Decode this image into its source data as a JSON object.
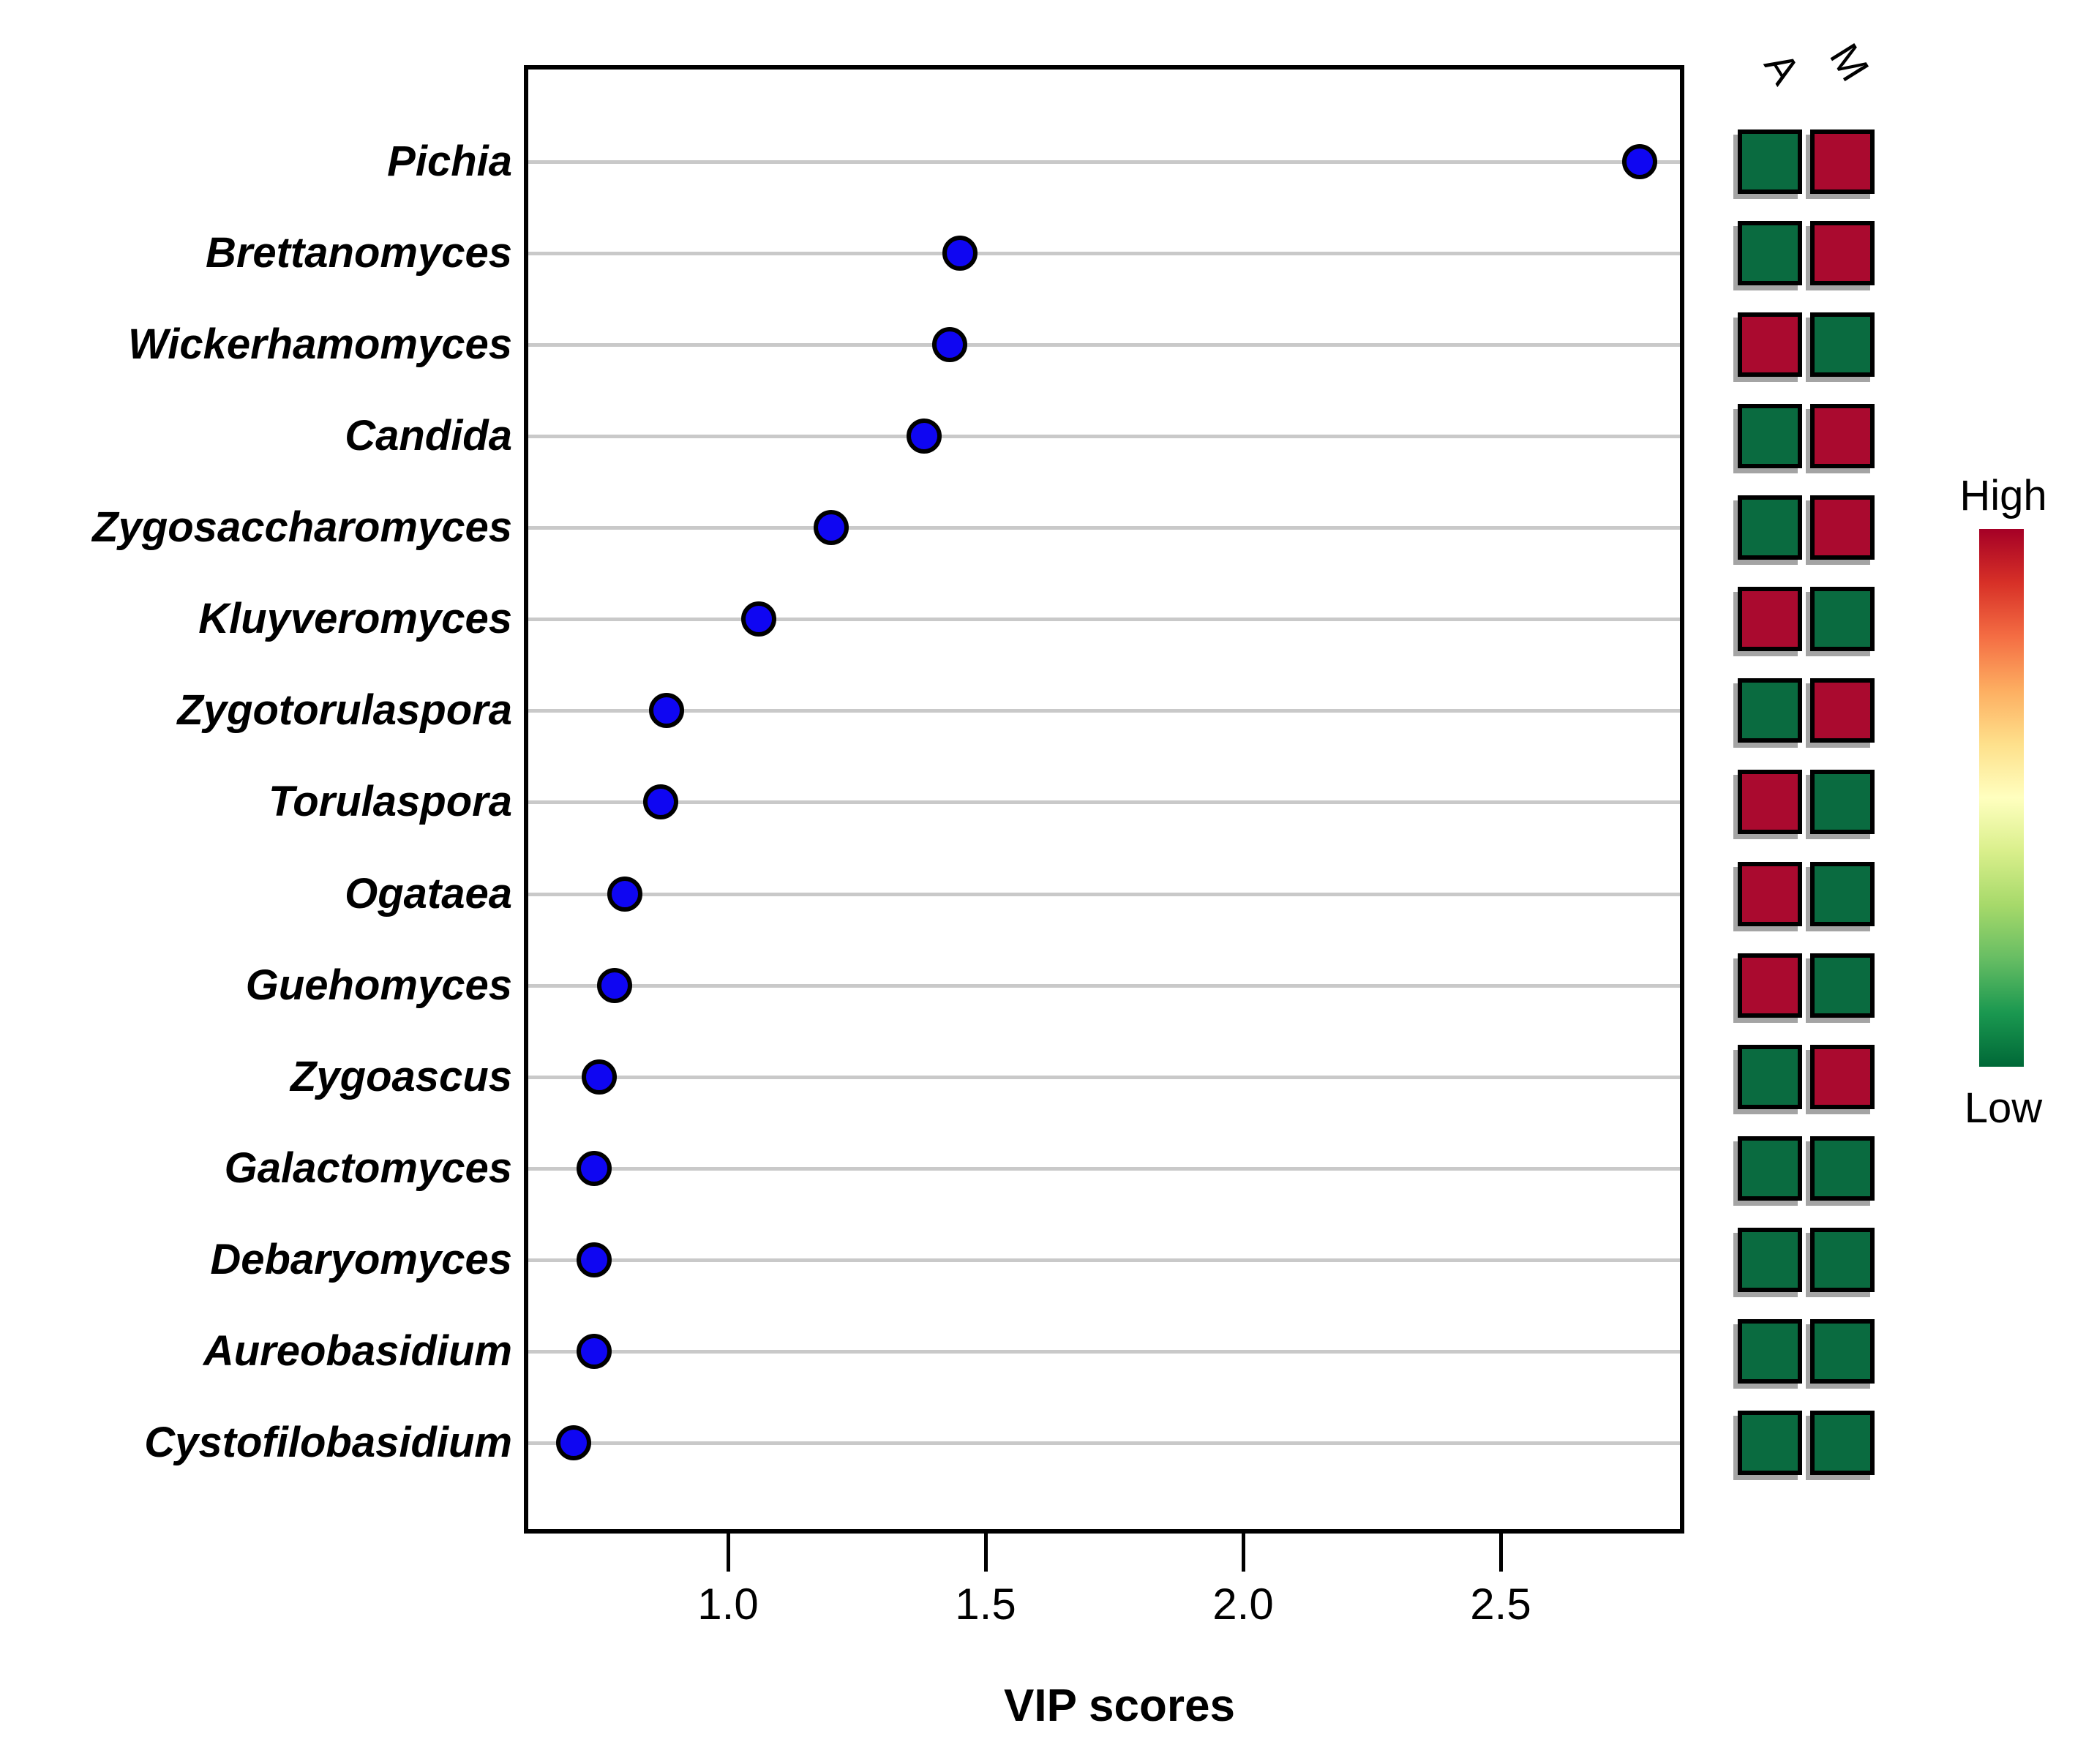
{
  "chart_data": {
    "type": "scatter",
    "title": "",
    "xlabel": "VIP scores",
    "ylabel": "",
    "xlim": [
      0.61,
      2.85
    ],
    "x_ticks": [
      1.0,
      1.5,
      2.0,
      2.5
    ],
    "x_tick_labels": [
      "1.0",
      "1.5",
      "2.0",
      "2.5"
    ],
    "grid": "horizontal-gray-lines",
    "legend_position": "right",
    "categories": [
      "Pichia",
      "Brettanomyces",
      "Wickerhamomyces",
      "Candida",
      "Zygosaccharomyces",
      "Kluyveromyces",
      "Zygotorulaspora",
      "Torulaspora",
      "Ogataea",
      "Guehomyces",
      "Zygoascus",
      "Galactomyces",
      "Debaryomyces",
      "Aureobasidium",
      "Cystofilobasidium"
    ],
    "series": [
      {
        "name": "VIP score",
        "values": [
          2.77,
          1.45,
          1.43,
          1.38,
          1.2,
          1.06,
          0.88,
          0.87,
          0.8,
          0.78,
          0.75,
          0.74,
          0.74,
          0.74,
          0.7
        ]
      }
    ],
    "heatmap": {
      "columns": [
        "A",
        "M"
      ],
      "cells": [
        [
          "Low",
          "High"
        ],
        [
          "Low",
          "High"
        ],
        [
          "High",
          "Low"
        ],
        [
          "Low",
          "High"
        ],
        [
          "Low",
          "High"
        ],
        [
          "High",
          "Low"
        ],
        [
          "Low",
          "High"
        ],
        [
          "High",
          "Low"
        ],
        [
          "High",
          "Low"
        ],
        [
          "High",
          "Low"
        ],
        [
          "Low",
          "High"
        ],
        [
          "Low",
          "Low"
        ],
        [
          "Low",
          "Low"
        ],
        [
          "Low",
          "Low"
        ],
        [
          "Low",
          "Low"
        ]
      ]
    },
    "legend": {
      "high_label": "High",
      "low_label": "Low"
    },
    "colors": {
      "dot_fill": "#0f06f2",
      "dot_border": "#000000",
      "heat_high": "#aa0a2f",
      "heat_low": "#0a6b40",
      "gridline": "#c9c9c9",
      "frame": "#000000",
      "colormap_top_to_bottom": [
        "#a50026",
        "#d73027",
        "#f46d43",
        "#fdae61",
        "#fee08b",
        "#ffffbf",
        "#d9ef8b",
        "#a6d96a",
        "#66bd63",
        "#1a9850",
        "#006837"
      ]
    }
  }
}
